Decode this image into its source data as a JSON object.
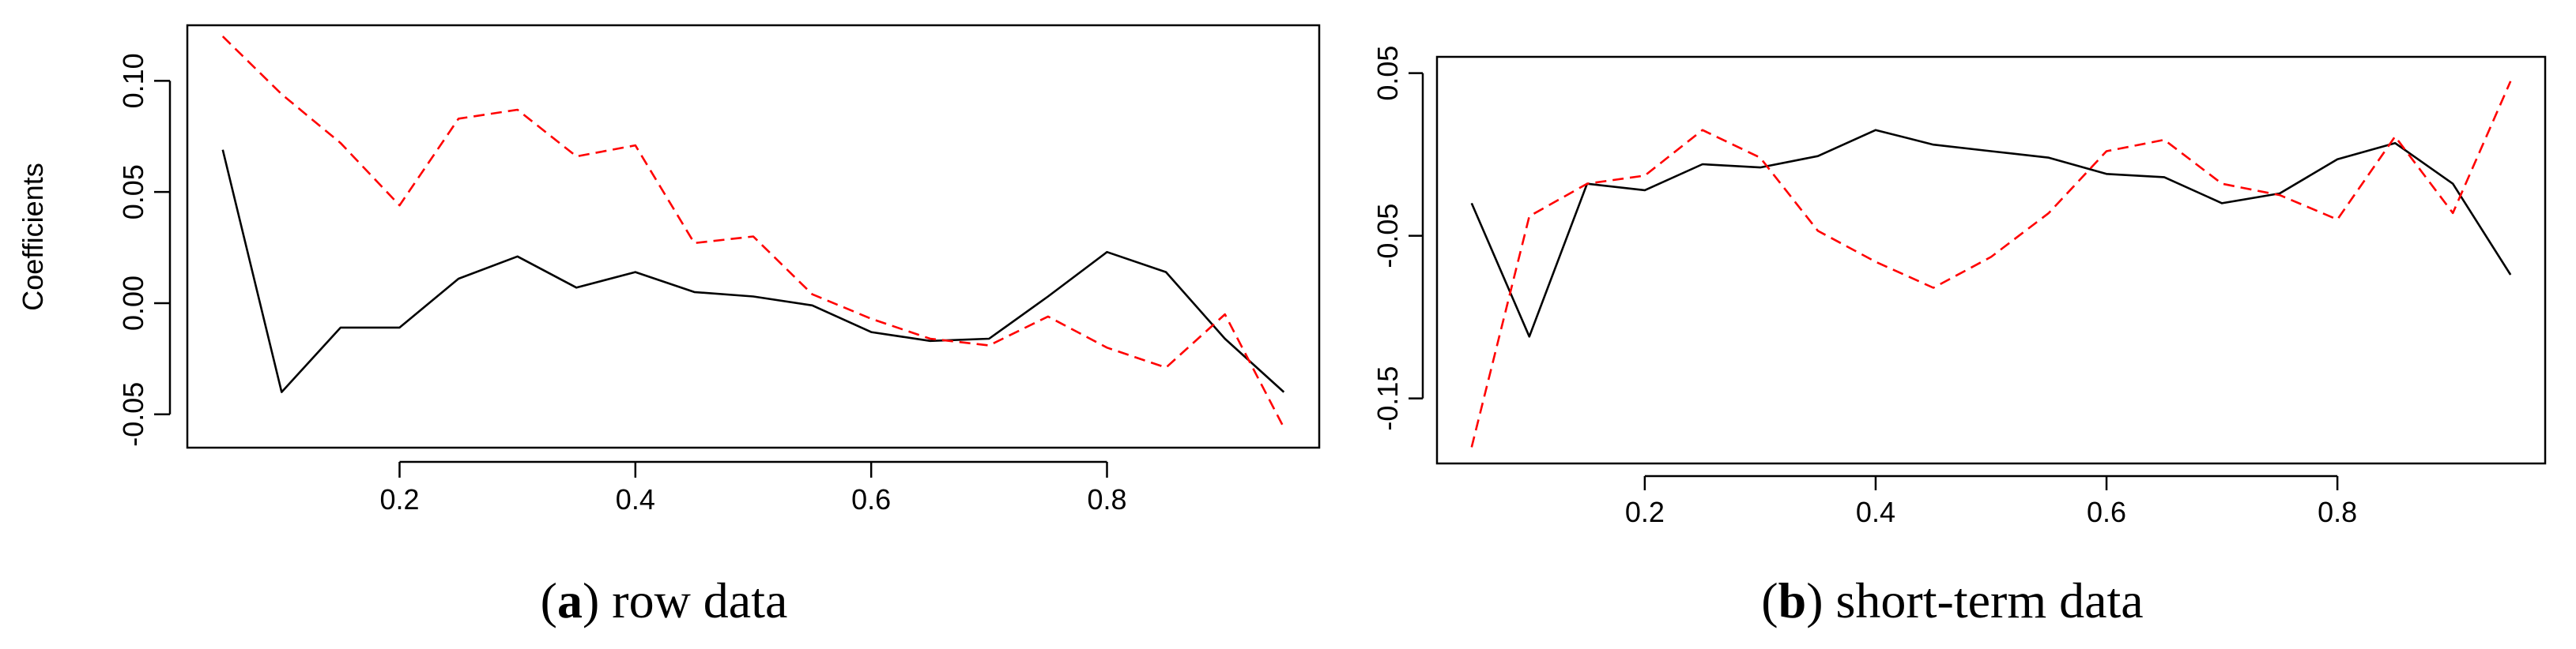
{
  "chart_data": [
    {
      "type": "line",
      "caption_letter": "a",
      "caption_text": " row data",
      "ylabel": "Coefficients",
      "xlabel": "",
      "title": "",
      "xlim": [
        0.02,
        0.98
      ],
      "ylim": [
        -0.065,
        0.125
      ],
      "xticks": [
        0.2,
        0.4,
        0.6,
        0.8
      ],
      "xtick_labels": [
        "0.2",
        "0.4",
        "0.6",
        "0.8"
      ],
      "yticks": [
        -0.05,
        0.0,
        0.05,
        0.1
      ],
      "ytick_labels": [
        "-0.05",
        "0.00",
        "0.05",
        "0.10"
      ],
      "x": [
        0.05,
        0.1,
        0.15,
        0.2,
        0.25,
        0.3,
        0.35,
        0.4,
        0.45,
        0.5,
        0.55,
        0.6,
        0.65,
        0.7,
        0.75,
        0.8,
        0.85,
        0.9,
        0.95
      ],
      "series": [
        {
          "style": "solid",
          "color": "#000000",
          "values": [
            0.069,
            -0.04,
            -0.011,
            -0.011,
            0.011,
            0.021,
            0.007,
            0.014,
            0.005,
            0.003,
            -0.001,
            -0.013,
            -0.017,
            -0.016,
            0.003,
            0.023,
            0.014,
            -0.016,
            -0.04
          ]
        },
        {
          "style": "dashed",
          "color": "#ff0000",
          "values": [
            0.12,
            0.094,
            0.072,
            0.044,
            0.083,
            0.087,
            0.066,
            0.071,
            0.027,
            0.03,
            0.004,
            -0.007,
            -0.016,
            -0.019,
            -0.006,
            -0.02,
            -0.029,
            -0.005,
            -0.056
          ]
        }
      ]
    },
    {
      "type": "line",
      "caption_letter": "b",
      "caption_text": " short-term data",
      "ylabel": "",
      "xlabel": "",
      "title": "",
      "xlim": [
        0.02,
        0.98
      ],
      "ylim": [
        -0.19,
        0.06
      ],
      "xticks": [
        0.2,
        0.4,
        0.6,
        0.8
      ],
      "xtick_labels": [
        "0.2",
        "0.4",
        "0.6",
        "0.8"
      ],
      "yticks": [
        -0.15,
        -0.05,
        0.05
      ],
      "ytick_labels": [
        "-0.15",
        "-0.05",
        "0.05"
      ],
      "x": [
        0.05,
        0.1,
        0.15,
        0.2,
        0.25,
        0.3,
        0.35,
        0.4,
        0.45,
        0.5,
        0.55,
        0.6,
        0.65,
        0.7,
        0.75,
        0.8,
        0.85,
        0.9,
        0.95
      ],
      "series": [
        {
          "style": "solid",
          "color": "#000000",
          "values": [
            -0.03,
            -0.112,
            -0.018,
            -0.022,
            -0.006,
            -0.008,
            -0.001,
            0.015,
            0.006,
            0.002,
            -0.002,
            -0.012,
            -0.014,
            -0.03,
            -0.024,
            -0.003,
            0.007,
            -0.018,
            -0.074
          ]
        },
        {
          "style": "dashed",
          "color": "#ff0000",
          "values": [
            -0.18,
            -0.038,
            -0.018,
            -0.013,
            0.015,
            -0.002,
            -0.047,
            -0.066,
            -0.082,
            -0.063,
            -0.036,
            0.002,
            0.009,
            -0.018,
            -0.025,
            -0.04,
            0.011,
            -0.036,
            0.045
          ]
        }
      ]
    }
  ]
}
